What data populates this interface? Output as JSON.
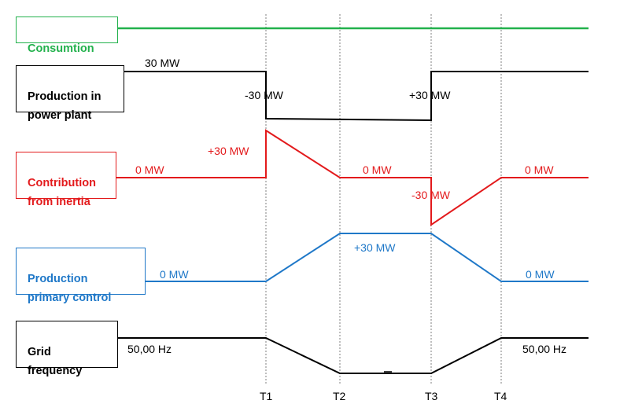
{
  "colors": {
    "consumption": "#22b14c",
    "production": "#000000",
    "inertia": "#e31a1c",
    "primary": "#1f78c8",
    "frequency": "#000000",
    "guides": "#7f7f7f"
  },
  "time_markers": [
    "T1",
    "T2",
    "T3",
    "T4"
  ],
  "rows": {
    "consumption": {
      "label": "Consumtion"
    },
    "production": {
      "label": "Production in\npower plant",
      "values": [
        "30 MW",
        "-30 MW",
        "+30 MW"
      ]
    },
    "inertia": {
      "label": "Contribution\nfrom inertia",
      "values": [
        "0 MW",
        "+30 MW",
        "0 MW",
        "-30 MW",
        "0 MW"
      ]
    },
    "primary": {
      "label": "Production\nprimary control",
      "values": [
        "0 MW",
        "+30 MW",
        "0 MW"
      ]
    },
    "frequency": {
      "label": "Grid\nfrequency",
      "values": [
        "50,00 Hz",
        "50,00 Hz"
      ]
    }
  }
}
